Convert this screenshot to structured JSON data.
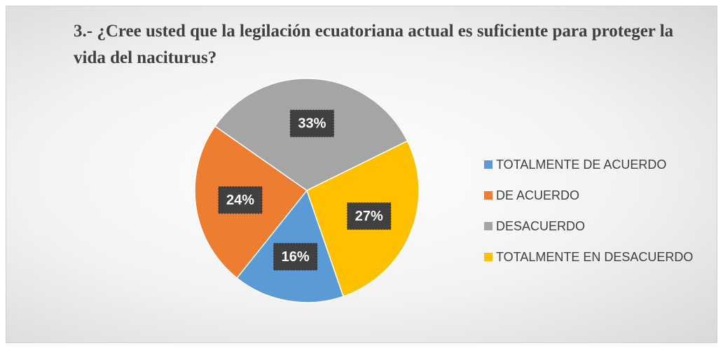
{
  "chart_data": {
    "type": "pie",
    "title": "3.- ¿Cree usted que la legilación ecuatoriana actual es suficiente para proteger la vida del naciturus?",
    "categories": [
      "TOTALMENTE DE ACUERDO",
      "DE ACUERDO",
      "DESACUERDO",
      "TOTALMENTE EN DESACUERDO"
    ],
    "values": [
      16,
      24,
      33,
      27
    ],
    "value_labels": [
      "16%",
      "24%",
      "33%",
      "27%"
    ],
    "colors": [
      "#5b9bd5",
      "#ed7d31",
      "#a5a5a5",
      "#ffc000"
    ],
    "legend": "right"
  }
}
